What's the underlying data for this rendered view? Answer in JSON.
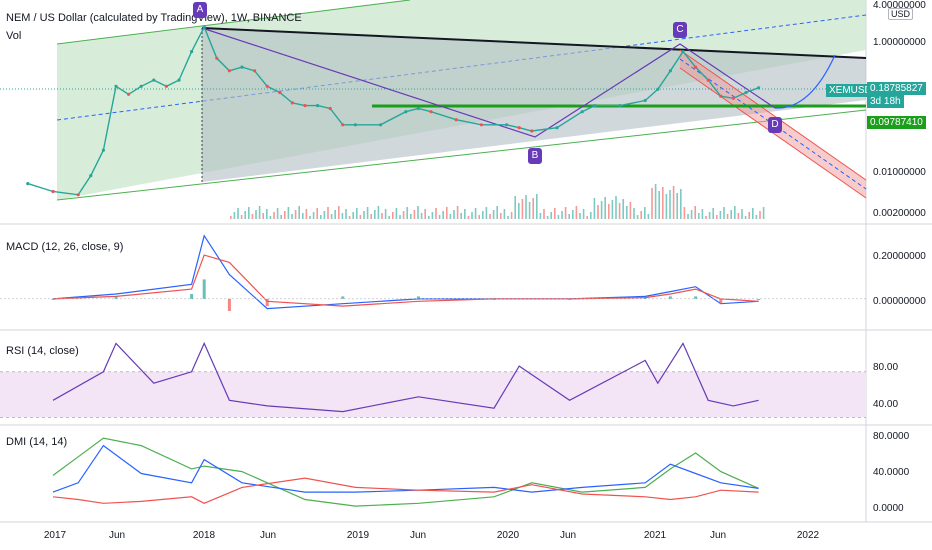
{
  "header": {
    "title": "NEM / US Dollar (calculated by TradingView), 1W, BINANCE",
    "vol_label": "Vol",
    "currency": "USD"
  },
  "points": {
    "a": "A",
    "b": "B",
    "c": "C",
    "d": "D"
  },
  "price_axis": {
    "labels": [
      "4.00000000",
      "1.00000000",
      "0.01000000",
      "0.00200000"
    ],
    "symbol": "XEMUSD",
    "last_price": "0.18785827",
    "countdown": "3d 18h",
    "level_price": "0.09787410"
  },
  "macd": {
    "title": "MACD (12, 26, close, 9)",
    "labels": [
      "0.20000000",
      "0.00000000"
    ]
  },
  "rsi": {
    "title": "RSI (14, close)",
    "labels": [
      "80.00",
      "40.00"
    ]
  },
  "dmi": {
    "title": "DMI (14, 14)",
    "labels": [
      "80.0000",
      "40.0000",
      "0.0000"
    ]
  },
  "time_axis": [
    "2017",
    "Jun",
    "2018",
    "Jun",
    "2019",
    "Jun",
    "2020",
    "Jun",
    "2021",
    "Jun",
    "2022"
  ],
  "colors": {
    "green": "#4caf50",
    "red": "#ef5350",
    "blue": "#2962ff",
    "purple": "#673ab7",
    "rsi_band": "#f3e5f5",
    "level": "#1b9e1b"
  },
  "chart_data": [
    {
      "type": "line",
      "title": "NEM / US Dollar (calculated by TradingView), 1W, BINANCE",
      "x": [
        "2016-11",
        "2017-01",
        "2017-03",
        "2017-04",
        "2017-05",
        "2017-06",
        "2017-07",
        "2017-08",
        "2017-09",
        "2017-10",
        "2017-11",
        "2017-12",
        "2018-01",
        "2018-02",
        "2018-03",
        "2018-04",
        "2018-05",
        "2018-06",
        "2018-07",
        "2018-08",
        "2018-09",
        "2018-10",
        "2018-11",
        "2018-12",
        "2019-01",
        "2019-03",
        "2019-05",
        "2019-06",
        "2019-07",
        "2019-09",
        "2019-11",
        "2020-01",
        "2020-02",
        "2020-03",
        "2020-05",
        "2020-07",
        "2020-08",
        "2020-10",
        "2020-12",
        "2021-01",
        "2021-02",
        "2021-03",
        "2021-04",
        "2021-05",
        "2021-06",
        "2021-07",
        "2021-08",
        "2021-09"
      ],
      "series": [
        {
          "values": [
            0.006,
            0.0045,
            0.004,
            0.008,
            0.02,
            0.2,
            0.15,
            0.2,
            0.25,
            0.2,
            0.25,
            0.7,
            1.7,
            0.55,
            0.35,
            0.4,
            0.35,
            0.2,
            0.16,
            0.11,
            0.1,
            0.1,
            0.09,
            0.05,
            0.05,
            0.05,
            0.08,
            0.09,
            0.08,
            0.06,
            0.05,
            0.05,
            0.045,
            0.04,
            0.045,
            0.08,
            0.1,
            0.1,
            0.12,
            0.18,
            0.35,
            0.7,
            0.4,
            0.25,
            0.14,
            0.13,
            0.16,
            0.19
          ]
        }
      ],
      "scale": "log",
      "ylim": [
        0.0015,
        4.5
      ]
    },
    {
      "type": "line",
      "title": "MACD (12, 26, close, 9)",
      "x": [
        "2017-01",
        "2017-06",
        "2017-12",
        "2018-01",
        "2018-03",
        "2018-06",
        "2018-12",
        "2019-06",
        "2019-12",
        "2020-06",
        "2020-12",
        "2021-02",
        "2021-04",
        "2021-06",
        "2021-09"
      ],
      "series": [
        {
          "values": [
            0.0,
            0.02,
            0.06,
            0.26,
            0.1,
            -0.04,
            -0.02,
            0.0,
            0.0,
            0.0,
            0.01,
            0.03,
            0.05,
            -0.02,
            -0.01
          ]
        },
        {
          "values": [
            0.0,
            0.01,
            0.04,
            0.18,
            0.15,
            -0.01,
            -0.03,
            -0.01,
            0.0,
            0.0,
            0.005,
            0.02,
            0.04,
            0.0,
            -0.01
          ]
        }
      ],
      "ylim": [
        -0.12,
        0.3
      ]
    },
    {
      "type": "line",
      "title": "RSI (14, close)",
      "x": [
        "2017-01",
        "2017-05",
        "2017-06",
        "2017-09",
        "2017-12",
        "2018-01",
        "2018-03",
        "2018-06",
        "2018-12",
        "2019-06",
        "2019-12",
        "2020-02",
        "2020-06",
        "2020-12",
        "2021-01",
        "2021-03",
        "2021-05",
        "2021-07",
        "2021-09"
      ],
      "series": [
        {
          "values": [
            45,
            70,
            95,
            60,
            70,
            95,
            45,
            40,
            35,
            48,
            38,
            75,
            45,
            80,
            60,
            95,
            45,
            40,
            45
          ]
        }
      ],
      "ylim": [
        25,
        105
      ]
    },
    {
      "type": "line",
      "title": "DMI (14, 14)",
      "x": [
        "2017-01",
        "2017-03",
        "2017-05",
        "2017-08",
        "2017-12",
        "2018-01",
        "2018-04",
        "2018-09",
        "2019-01",
        "2019-06",
        "2019-12",
        "2020-03",
        "2020-07",
        "2020-12",
        "2021-02",
        "2021-04",
        "2021-06",
        "2021-09"
      ],
      "series": [
        {
          "values": [
            38,
            58,
            78,
            70,
            45,
            48,
            42,
            12,
            5,
            8,
            15,
            30,
            20,
            25,
            45,
            62,
            42,
            24
          ]
        },
        {
          "values": [
            20,
            30,
            70,
            40,
            30,
            55,
            30,
            20,
            20,
            22,
            25,
            20,
            25,
            30,
            50,
            40,
            30,
            24
          ]
        },
        {
          "values": [
            15,
            12,
            8,
            10,
            15,
            8,
            25,
            35,
            25,
            22,
            20,
            28,
            18,
            15,
            12,
            15,
            22,
            20
          ]
        }
      ],
      "ylim": [
        -10,
        90
      ]
    }
  ]
}
